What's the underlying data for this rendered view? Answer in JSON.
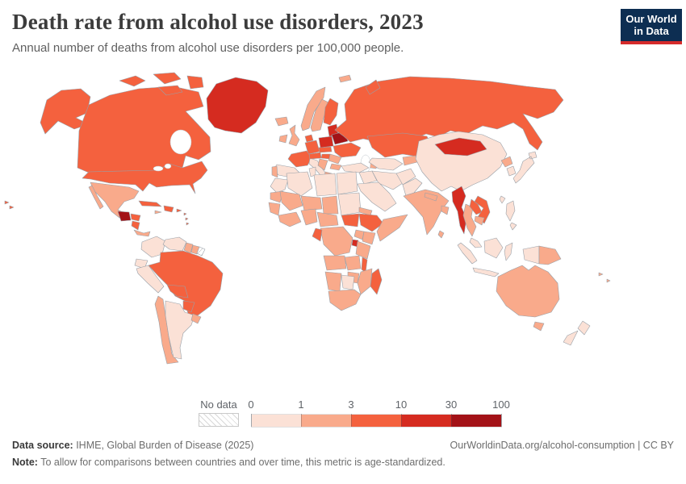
{
  "header": {
    "title": "Death rate from alcohol use disorders, 2023",
    "subtitle": "Annual number of deaths from alcohol use disorders per 100,000 people."
  },
  "logo": {
    "line1": "Our World",
    "line2": "in Data",
    "bg_color": "#0d2e52",
    "stripe_color": "#d52b2b"
  },
  "legend": {
    "no_data_label": "No data",
    "tick_labels": [
      "0",
      "1",
      "3",
      "10",
      "30",
      "100"
    ]
  },
  "footer": {
    "data_source_label": "Data source:",
    "data_source_value": " IHME, Global Burden of Disease (2025)",
    "link_text": "OurWorldinData.org/alcohol-consumption | CC BY",
    "note_label": "Note:",
    "note_value": " To allow for comparisons between countries and over time, this metric is age-standardized."
  },
  "chart_data": {
    "type": "heatmap",
    "subtype": "choropleth-world-map",
    "title": "Death rate from alcohol use disorders, 2023",
    "unit": "deaths per 100,000 people",
    "year": 2023,
    "scale_thresholds": [
      0,
      1,
      3,
      10,
      30,
      100
    ],
    "bucket_labels": [
      "0-1",
      "1-3",
      "3-10",
      "10-30",
      "30-100"
    ],
    "colors": [
      "#fbe1d6",
      "#f9aa8b",
      "#f4613e",
      "#d52b20",
      "#a31217"
    ],
    "no_data_style": "white with gray diagonal hatching",
    "country_values": {
      "alaska": 2,
      "hawaii": 2,
      "canada": 2,
      "arctic-islands-west": 2,
      "arctic-islands-mid": 2,
      "arctic-islands-east": 2,
      "arctic-islands-south": 2,
      "greenland": 3,
      "usa": 2,
      "mexico": 1,
      "baja-california": 1,
      "guatemala": 4,
      "honduras": 2,
      "nicaragua": 2,
      "costa-rica-panama": 1,
      "cuba": 2,
      "jamaica": 1,
      "hispaniola": 2,
      "puerto-rico": 2,
      "lesser-antilles": 2,
      "colombia": 0,
      "venezuela": 0,
      "guyana": 1,
      "suriname": 1,
      "french-guiana": "nodata",
      "ecuador": 0,
      "peru": 0,
      "brazil": 2,
      "bolivia": 2,
      "paraguay": 2,
      "chile": 1,
      "argentina": 0,
      "uruguay": 1,
      "iceland": 1,
      "ireland": 1,
      "united-kingdom": 1,
      "norway": 1,
      "sweden": 1,
      "finland": 2,
      "denmark": 2,
      "germany": 2,
      "france": 2,
      "spain": 0,
      "portugal": 1,
      "italy": 0,
      "sicily": 0,
      "alpine-states": 2,
      "czechia-slovakia": 2,
      "poland": 3,
      "baltic-states": 3,
      "belarus": 4,
      "ukraine": 2,
      "romania": 1,
      "hungary": 2,
      "balkans": 1,
      "bulgaria": 1,
      "greece": 1,
      "caucasus": 1,
      "russia": 2,
      "svalbard": 1,
      "novaya-zemlya": 2,
      "kazakhstan": 2,
      "uzbekistan-turkmenistan": 0,
      "kyrgyzstan-tajikistan": 1,
      "turkey": 0,
      "syria-iraq": 0,
      "iran": 0,
      "saudi-arabia": 0,
      "afghanistan": 0,
      "pakistan": 0,
      "india": 1,
      "nepal": 1,
      "bangladesh": 1,
      "sri-lanka": 1,
      "china": 0,
      "mongolia": 3,
      "north-korea": 1,
      "south-korea": 0,
      "japan": 0,
      "taiwan": 0,
      "myanmar": 3,
      "thailand": 1,
      "laos": 2,
      "vietnam": 2,
      "cambodia": 1,
      "peninsular-malaysia": 0,
      "sumatra": 0,
      "java": 0,
      "borneo": 0,
      "sulawesi": 0,
      "west-papua": 0,
      "papua-new-guinea": 1,
      "philippines": 0,
      "morocco": 0,
      "algeria": 0,
      "tunisia": 0,
      "libya": 0,
      "egypt": 0,
      "mauritania": 1,
      "mali": 1,
      "niger": 1,
      "chad": 1,
      "sudan": 0,
      "senegal-guinea": 1,
      "west-africa-coast": 1,
      "nigeria": 1,
      "cameroon-car": 1,
      "south-sudan": 2,
      "eritrea": 1,
      "ethiopia": 2,
      "somalia": 1,
      "kenya": 1,
      "uganda": 1,
      "dr-congo": 1,
      "rwanda-burundi": 3,
      "tanzania": 1,
      "gabon-congo": 2,
      "angola": 1,
      "zambia": 1,
      "malawi": 2,
      "mozambique": 1,
      "zimbabwe": 1,
      "namibia": 1,
      "botswana": 0,
      "south-africa": 1,
      "madagascar": 2,
      "australia": 1,
      "tasmania": 1,
      "new-zealand-north": 0,
      "new-zealand-south": 0,
      "pacific-islands": 1
    }
  }
}
